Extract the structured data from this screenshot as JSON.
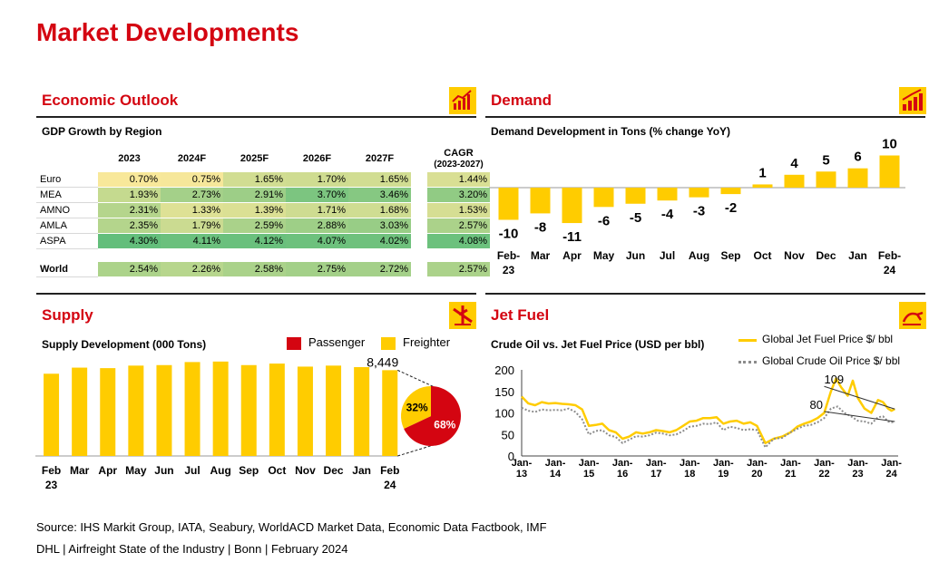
{
  "page_title": "Market Developments",
  "sections": {
    "economic_outlook": "Economic Outlook",
    "demand": "Demand",
    "supply": "Supply",
    "jet_fuel": "Jet Fuel"
  },
  "icons": {
    "economic_outlook": "economic-chart-icon",
    "demand": "bar-growth-icon",
    "supply": "airplane-icon",
    "jet_fuel": "fuel-pump-icon"
  },
  "colors": {
    "brand_red": "#d40511",
    "brand_yellow": "#ffcc00",
    "heat_low": "#f8e89a",
    "heat_high": "#63be7b"
  },
  "gdp": {
    "subtitle": "GDP Growth by Region",
    "columns": [
      "2023",
      "2024F",
      "2025F",
      "2026F",
      "2027F"
    ],
    "cagr_label": "CAGR",
    "cagr_sub": "(2023-2027)",
    "rows": [
      {
        "region": "Euro",
        "values": [
          "0.70%",
          "0.75%",
          "1.65%",
          "1.70%",
          "1.65%"
        ],
        "cagr": "1.44%"
      },
      {
        "region": "MEA",
        "values": [
          "1.93%",
          "2.73%",
          "2.91%",
          "3.70%",
          "3.46%"
        ],
        "cagr": "3.20%"
      },
      {
        "region": "AMNO",
        "values": [
          "2.31%",
          "1.33%",
          "1.39%",
          "1.71%",
          "1.68%"
        ],
        "cagr": "1.53%"
      },
      {
        "region": "AMLA",
        "values": [
          "2.35%",
          "1.79%",
          "2.59%",
          "2.88%",
          "3.03%"
        ],
        "cagr": "2.57%"
      },
      {
        "region": "ASPA",
        "values": [
          "4.30%",
          "4.11%",
          "4.12%",
          "4.07%",
          "4.02%"
        ],
        "cagr": "4.08%"
      }
    ],
    "world": {
      "region": "World",
      "values": [
        "2.54%",
        "2.26%",
        "2.58%",
        "2.75%",
        "2.72%"
      ],
      "cagr": "2.57%"
    }
  },
  "demand_subtitle": "Demand Development in Tons (% change YoY)",
  "supply_subtitle": "Supply Development (000 Tons)",
  "jet_subtitle": "Crude Oil vs. Jet Fuel Price (USD per bbl)",
  "chart_data": [
    {
      "type": "bar",
      "id": "demand",
      "categories": [
        "Feb-23",
        "Mar",
        "Apr",
        "May",
        "Jun",
        "Jul",
        "Aug",
        "Sep",
        "Oct",
        "Nov",
        "Dec",
        "Jan",
        "Feb-24"
      ],
      "category_lines": [
        [
          "Feb-",
          "23"
        ],
        [
          "Mar"
        ],
        [
          "Apr"
        ],
        [
          "May"
        ],
        [
          "Jun"
        ],
        [
          "Jul"
        ],
        [
          "Aug"
        ],
        [
          "Sep"
        ],
        [
          "Oct"
        ],
        [
          "Nov"
        ],
        [
          "Dec"
        ],
        [
          "Jan"
        ],
        [
          "Feb-",
          "24"
        ]
      ],
      "values": [
        -10,
        -8,
        -11,
        -6,
        -5,
        -4,
        -3,
        -2,
        1,
        4,
        5,
        6,
        10
      ],
      "labels": [
        "-10",
        "-8",
        "-11",
        "-6",
        "-5",
        "-4",
        "-3",
        "-2",
        "1",
        "4",
        "5",
        "6",
        "10"
      ],
      "color": "#ffcc00"
    },
    {
      "type": "bar",
      "id": "supply",
      "categories": [
        "Feb 23",
        "Mar",
        "Apr",
        "May",
        "Jun",
        "Jul",
        "Aug",
        "Sep",
        "Oct",
        "Nov",
        "Dec",
        "Jan",
        "Feb 24"
      ],
      "category_lines": [
        [
          "Feb",
          "23"
        ],
        [
          "Mar"
        ],
        [
          "Apr"
        ],
        [
          "May"
        ],
        [
          "Jun"
        ],
        [
          "Jul"
        ],
        [
          "Aug"
        ],
        [
          "Sep"
        ],
        [
          "Oct"
        ],
        [
          "Nov"
        ],
        [
          "Dec"
        ],
        [
          "Jan"
        ],
        [
          "Feb",
          "24"
        ]
      ],
      "values": [
        8100,
        8700,
        8650,
        8900,
        8950,
        9250,
        9300,
        8950,
        9100,
        8800,
        8900,
        8750,
        8449
      ],
      "last_label": "8,449",
      "legend": [
        {
          "name": "Passenger",
          "color": "#d40511"
        },
        {
          "name": "Freighter",
          "color": "#ffcc00"
        }
      ]
    },
    {
      "type": "pie",
      "id": "supply-split",
      "slices": [
        {
          "name": "Passenger",
          "value": 68,
          "label": "68%",
          "color": "#d40511"
        },
        {
          "name": "Freighter",
          "value": 32,
          "label": "32%",
          "color": "#ffcc00"
        }
      ]
    },
    {
      "type": "line",
      "id": "jet-fuel",
      "x_ticks": [
        "Jan-13",
        "Jan-14",
        "Jan-15",
        "Jan-16",
        "Jan-17",
        "Jan-18",
        "Jan-19",
        "Jan-20",
        "Jan-21",
        "Jan-22",
        "Jan-23",
        "Jan-24"
      ],
      "x_tick_lines": [
        [
          "Jan-",
          "13"
        ],
        [
          "Jan-",
          "14"
        ],
        [
          "Jan-",
          "15"
        ],
        [
          "Jan-",
          "16"
        ],
        [
          "Jan-",
          "17"
        ],
        [
          "Jan-",
          "18"
        ],
        [
          "Jan-",
          "19"
        ],
        [
          "Jan-",
          "20"
        ],
        [
          "Jan-",
          "21"
        ],
        [
          "Jan-",
          "22"
        ],
        [
          "Jan-",
          "23"
        ],
        [
          "Jan-",
          "24"
        ]
      ],
      "ylim": [
        0,
        200
      ],
      "y_ticks": [
        0,
        50,
        100,
        150,
        200
      ],
      "x_start": 2013.0,
      "x_end": 2024.2,
      "series": [
        {
          "name": "Global Jet Fuel Price $/ bbl",
          "color": "#ffcc00",
          "style": "solid",
          "points": [
            [
              2013.0,
              138
            ],
            [
              2013.2,
              122
            ],
            [
              2013.4,
              118
            ],
            [
              2013.6,
              125
            ],
            [
              2013.8,
              122
            ],
            [
              2014.0,
              123
            ],
            [
              2014.2,
              121
            ],
            [
              2014.4,
              120
            ],
            [
              2014.6,
              118
            ],
            [
              2014.8,
              108
            ],
            [
              2015.0,
              70
            ],
            [
              2015.2,
              72
            ],
            [
              2015.4,
              75
            ],
            [
              2015.6,
              60
            ],
            [
              2015.8,
              55
            ],
            [
              2016.0,
              40
            ],
            [
              2016.2,
              45
            ],
            [
              2016.4,
              55
            ],
            [
              2016.6,
              52
            ],
            [
              2016.8,
              55
            ],
            [
              2017.0,
              60
            ],
            [
              2017.2,
              58
            ],
            [
              2017.4,
              55
            ],
            [
              2017.6,
              60
            ],
            [
              2017.8,
              70
            ],
            [
              2018.0,
              80
            ],
            [
              2018.2,
              82
            ],
            [
              2018.4,
              88
            ],
            [
              2018.6,
              88
            ],
            [
              2018.8,
              90
            ],
            [
              2019.0,
              75
            ],
            [
              2019.2,
              80
            ],
            [
              2019.4,
              82
            ],
            [
              2019.6,
              75
            ],
            [
              2019.8,
              78
            ],
            [
              2020.0,
              70
            ],
            [
              2020.25,
              30
            ],
            [
              2020.5,
              40
            ],
            [
              2020.75,
              45
            ],
            [
              2021.0,
              55
            ],
            [
              2021.2,
              68
            ],
            [
              2021.4,
              75
            ],
            [
              2021.6,
              80
            ],
            [
              2021.8,
              88
            ],
            [
              2022.0,
              100
            ],
            [
              2022.2,
              150
            ],
            [
              2022.35,
              180
            ],
            [
              2022.5,
              160
            ],
            [
              2022.7,
              140
            ],
            [
              2022.85,
              175
            ],
            [
              2023.0,
              135
            ],
            [
              2023.2,
              110
            ],
            [
              2023.4,
              100
            ],
            [
              2023.6,
              130
            ],
            [
              2023.75,
              125
            ],
            [
              2023.9,
              110
            ],
            [
              2024.0,
              105
            ],
            [
              2024.1,
              109
            ]
          ]
        },
        {
          "name": "Global Crude Oil Price $/ bbl",
          "color": "#8c8c8c",
          "style": "dotted",
          "points": [
            [
              2013.0,
              112
            ],
            [
              2013.2,
              105
            ],
            [
              2013.4,
              102
            ],
            [
              2013.6,
              108
            ],
            [
              2013.8,
              106
            ],
            [
              2014.0,
              107
            ],
            [
              2014.2,
              106
            ],
            [
              2014.4,
              110
            ],
            [
              2014.6,
              102
            ],
            [
              2014.8,
              85
            ],
            [
              2015.0,
              50
            ],
            [
              2015.2,
              58
            ],
            [
              2015.4,
              60
            ],
            [
              2015.6,
              48
            ],
            [
              2015.8,
              44
            ],
            [
              2016.0,
              30
            ],
            [
              2016.2,
              38
            ],
            [
              2016.4,
              46
            ],
            [
              2016.6,
              45
            ],
            [
              2016.8,
              48
            ],
            [
              2017.0,
              54
            ],
            [
              2017.2,
              52
            ],
            [
              2017.4,
              48
            ],
            [
              2017.6,
              50
            ],
            [
              2017.8,
              58
            ],
            [
              2018.0,
              68
            ],
            [
              2018.2,
              70
            ],
            [
              2018.4,
              75
            ],
            [
              2018.6,
              74
            ],
            [
              2018.8,
              78
            ],
            [
              2019.0,
              60
            ],
            [
              2019.2,
              68
            ],
            [
              2019.4,
              65
            ],
            [
              2019.6,
              60
            ],
            [
              2019.8,
              62
            ],
            [
              2020.0,
              60
            ],
            [
              2020.25,
              20
            ],
            [
              2020.5,
              40
            ],
            [
              2020.75,
              42
            ],
            [
              2021.0,
              55
            ],
            [
              2021.2,
              63
            ],
            [
              2021.4,
              70
            ],
            [
              2021.6,
              72
            ],
            [
              2021.8,
              78
            ],
            [
              2022.0,
              88
            ],
            [
              2022.2,
              110
            ],
            [
              2022.4,
              115
            ],
            [
              2022.6,
              100
            ],
            [
              2022.8,
              92
            ],
            [
              2023.0,
              82
            ],
            [
              2023.2,
              80
            ],
            [
              2023.4,
              75
            ],
            [
              2023.6,
              90
            ],
            [
              2023.75,
              92
            ],
            [
              2023.9,
              80
            ],
            [
              2024.0,
              78
            ],
            [
              2024.1,
              80
            ]
          ]
        }
      ],
      "annotations": [
        {
          "label": "109",
          "series": "Global Jet Fuel Price $/ bbl",
          "value": 109
        },
        {
          "label": "80",
          "series": "Global Crude Oil Price $/ bbl",
          "value": 80
        }
      ]
    }
  ],
  "footer": {
    "source": "Source: IHS Markit Group, IATA, Seabury, WorldACD Market Data, Economic Data Factbook, IMF",
    "org": "DHL | Airfreight State of the Industry | Bonn | February 2024"
  }
}
